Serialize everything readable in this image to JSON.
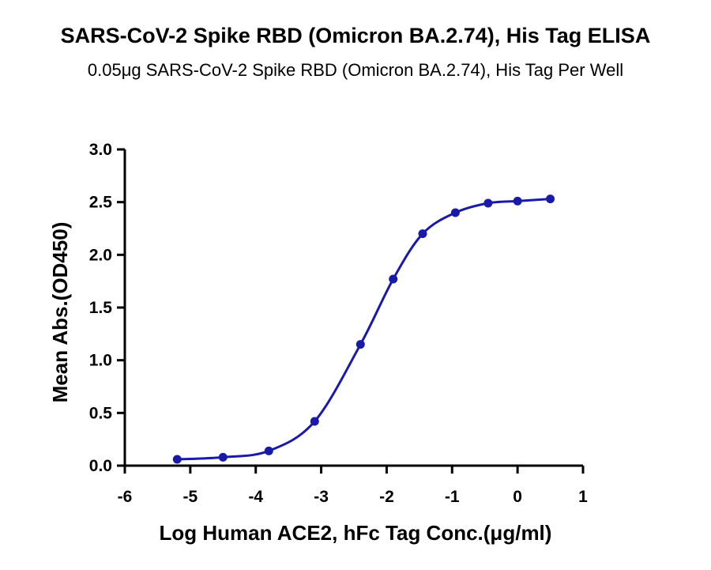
{
  "chart_data": {
    "type": "line",
    "title": "SARS-CoV-2 Spike RBD (Omicron BA.2.74), His Tag ELISA",
    "subtitle": "0.05μg SARS-CoV-2 Spike RBD (Omicron BA.2.74), His Tag Per Well",
    "xlabel": "Log Human ACE2, hFc Tag Conc.(μg/ml)",
    "ylabel": "Mean Abs.(OD450)",
    "xlim": [
      -6,
      1
    ],
    "ylim": [
      0,
      3.0
    ],
    "x_ticks": [
      "-6",
      "-5",
      "-4",
      "-3",
      "-2",
      "-1",
      "0",
      "1"
    ],
    "y_ticks": [
      "0.0",
      "0.5",
      "1.0",
      "1.5",
      "2.0",
      "2.5",
      "3.0"
    ],
    "series": [
      {
        "color": "#1a1aaa",
        "points": [
          {
            "x": -5.2,
            "y": 0.06
          },
          {
            "x": -4.5,
            "y": 0.08
          },
          {
            "x": -3.8,
            "y": 0.14
          },
          {
            "x": -3.1,
            "y": 0.42
          },
          {
            "x": -2.4,
            "y": 1.15
          },
          {
            "x": -1.9,
            "y": 1.77
          },
          {
            "x": -1.45,
            "y": 2.2
          },
          {
            "x": -0.95,
            "y": 2.4
          },
          {
            "x": -0.45,
            "y": 2.49
          },
          {
            "x": 0.0,
            "y": 2.51
          },
          {
            "x": 0.5,
            "y": 2.53
          }
        ]
      }
    ],
    "grid": false,
    "legend": "none"
  }
}
